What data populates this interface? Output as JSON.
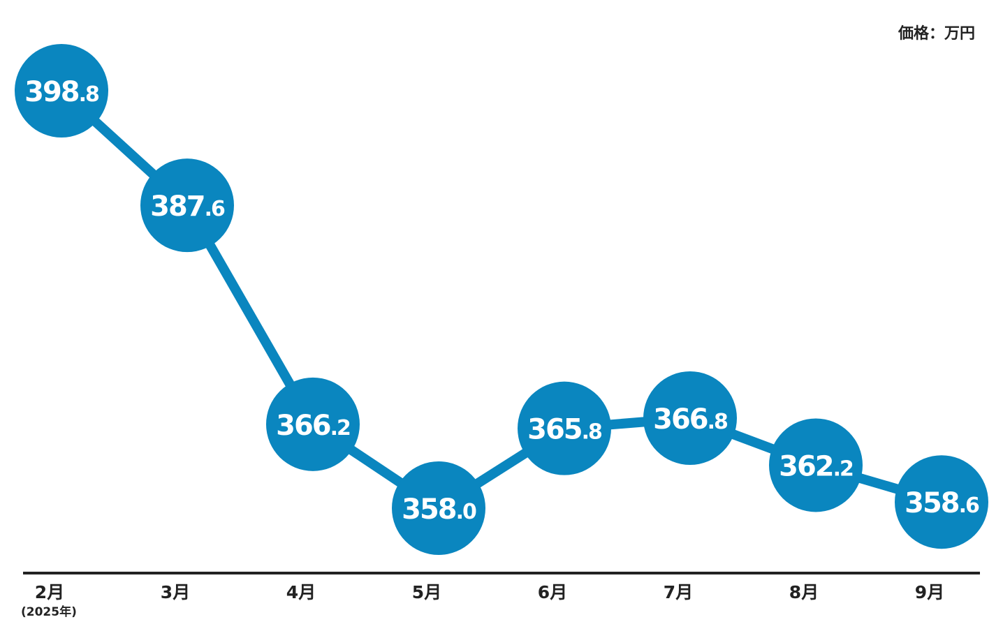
{
  "unit_label": "価格：万円",
  "year_note": "(2025年)",
  "colors": {
    "accent": "#0a86bf",
    "text": "#222222",
    "axis": "#222222",
    "value_text": "#ffffff"
  },
  "chart_data": {
    "type": "line",
    "title": "",
    "xlabel": "",
    "ylabel": "",
    "ylim": [
      355,
      400
    ],
    "grid": false,
    "categories": [
      "2月",
      "3月",
      "4月",
      "5月",
      "6月",
      "7月",
      "8月",
      "9月"
    ],
    "series": [
      {
        "values": [
          398.8,
          387.6,
          366.2,
          358.0,
          365.8,
          366.8,
          362.2,
          358.6
        ]
      }
    ],
    "value_labels": [
      {
        "int": "398",
        "dec": ".8"
      },
      {
        "int": "387",
        "dec": ".6"
      },
      {
        "int": "366",
        "dec": ".2"
      },
      {
        "int": "358",
        "dec": ".0"
      },
      {
        "int": "365",
        "dec": ".8"
      },
      {
        "int": "366",
        "dec": ".8"
      },
      {
        "int": "362",
        "dec": ".2"
      },
      {
        "int": "358",
        "dec": ".6"
      }
    ]
  }
}
